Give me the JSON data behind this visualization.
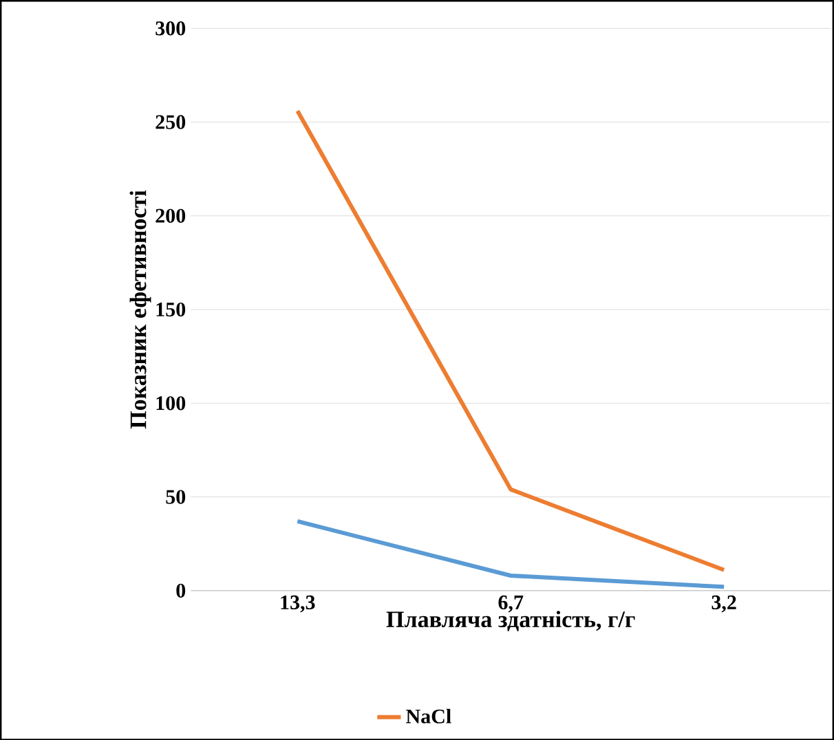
{
  "chart_data": {
    "type": "line",
    "xlabel": "Плавляча здатність, г/г",
    "ylabel": "Показник ефетивності",
    "categories": [
      "13,3",
      "6,7",
      "3,2"
    ],
    "series": [
      {
        "color": "#5b9bd5",
        "values": [
          37,
          8,
          2
        ]
      },
      {
        "name": "NaCl",
        "color": "#ed7d31",
        "values": [
          256,
          54,
          11
        ]
      }
    ],
    "ylim": [
      0,
      300
    ],
    "yticks": [
      0,
      50,
      100,
      150,
      200,
      250,
      300
    ],
    "grid": "y",
    "legend": "bottom",
    "marker": "none"
  }
}
